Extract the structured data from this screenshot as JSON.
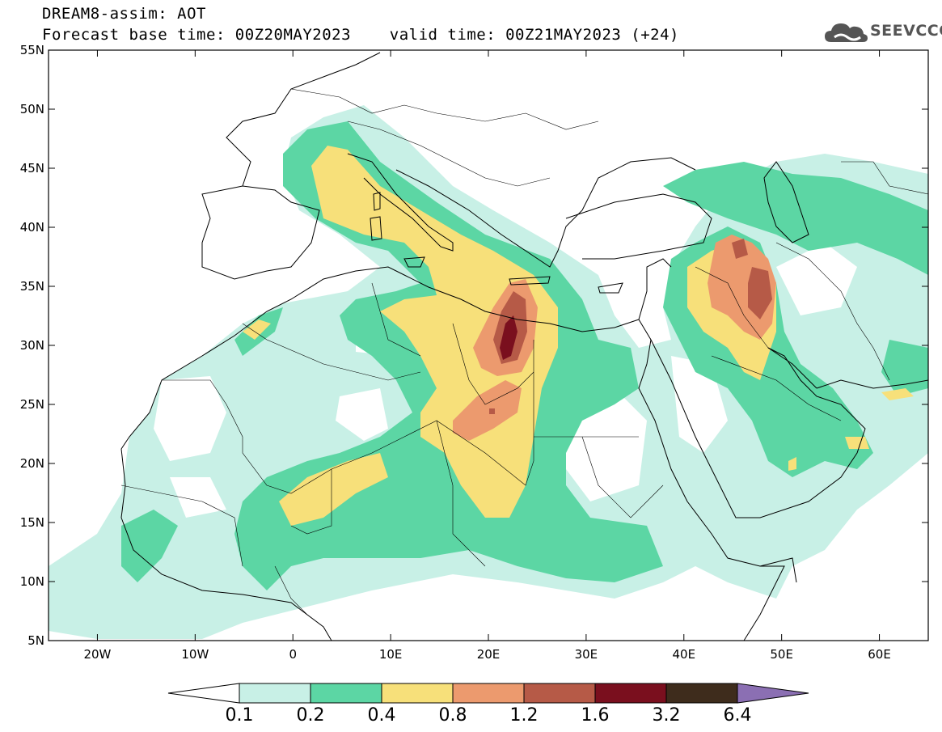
{
  "header": {
    "line1": "DREAM8-assim: AOT",
    "line2": "Forecast base time: 00Z20MAY2023    valid time: 00Z21MAY2023 (+24)"
  },
  "logo": {
    "text": "SEEVCCC",
    "icon": "cloud-icon"
  },
  "map": {
    "lon_range": [
      -25,
      65
    ],
    "lat_range": [
      5,
      55
    ],
    "lat_ticks": [
      "5N",
      "10N",
      "15N",
      "20N",
      "25N",
      "30N",
      "35N",
      "40N",
      "45N",
      "50N",
      "55N"
    ],
    "lon_ticks": [
      "20W",
      "10W",
      "0",
      "10E",
      "20E",
      "30E",
      "40E",
      "50E",
      "60E"
    ]
  },
  "colorbar": {
    "labels": [
      "0.1",
      "0.2",
      "0.4",
      "0.8",
      "1.2",
      "1.6",
      "3.2",
      "6.4"
    ],
    "colors": [
      "#ffffff",
      "#c8f0e6",
      "#5cd6a4",
      "#f7e07a",
      "#ec9a6e",
      "#b65a47",
      "#7a0f1e",
      "#3e2c1c",
      "#8b6fb3"
    ]
  }
}
